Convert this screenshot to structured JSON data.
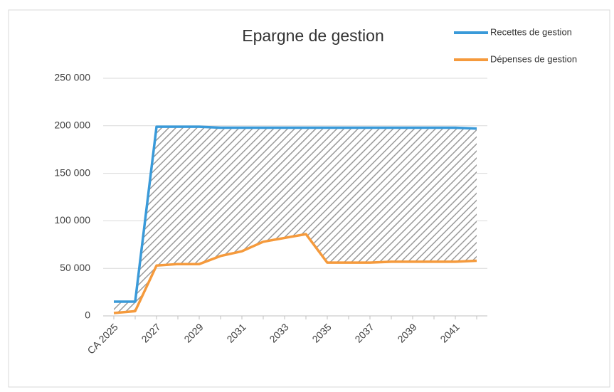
{
  "chart_data": {
    "type": "line",
    "title": "Epargne de gestion",
    "categories": [
      "CA 2025",
      null,
      "2027",
      null,
      "2029",
      null,
      "2031",
      null,
      "2033",
      null,
      "2035",
      null,
      "2037",
      null,
      "2039",
      null,
      "2041",
      null
    ],
    "series": [
      {
        "name": "Recettes de gestion",
        "color": "#3a9ad9",
        "values": [
          15000,
          15000,
          199000,
          199000,
          199000,
          198000,
          198000,
          198000,
          198000,
          198000,
          198000,
          198000,
          198000,
          198000,
          198000,
          198000,
          198000,
          197000
        ]
      },
      {
        "name": "Dépenses de gestion",
        "color": "#f59a3c",
        "values": [
          3000,
          5000,
          53000,
          54500,
          54500,
          63000,
          68000,
          78000,
          82000,
          86000,
          56000,
          56000,
          56000,
          57000,
          57000,
          57000,
          57000,
          58000
        ]
      }
    ],
    "ylim": [
      0,
      250000
    ],
    "yticks": [
      0,
      {
        "value": 50000,
        "label": "50 000"
      },
      {
        "value": 100000,
        "label": "100 000"
      },
      {
        "value": 150000,
        "label": "150 000"
      },
      {
        "value": 200000,
        "label": "200 000"
      },
      {
        "value": 250000,
        "label": "250 000"
      }
    ],
    "grid": true,
    "legend": "top-right"
  }
}
